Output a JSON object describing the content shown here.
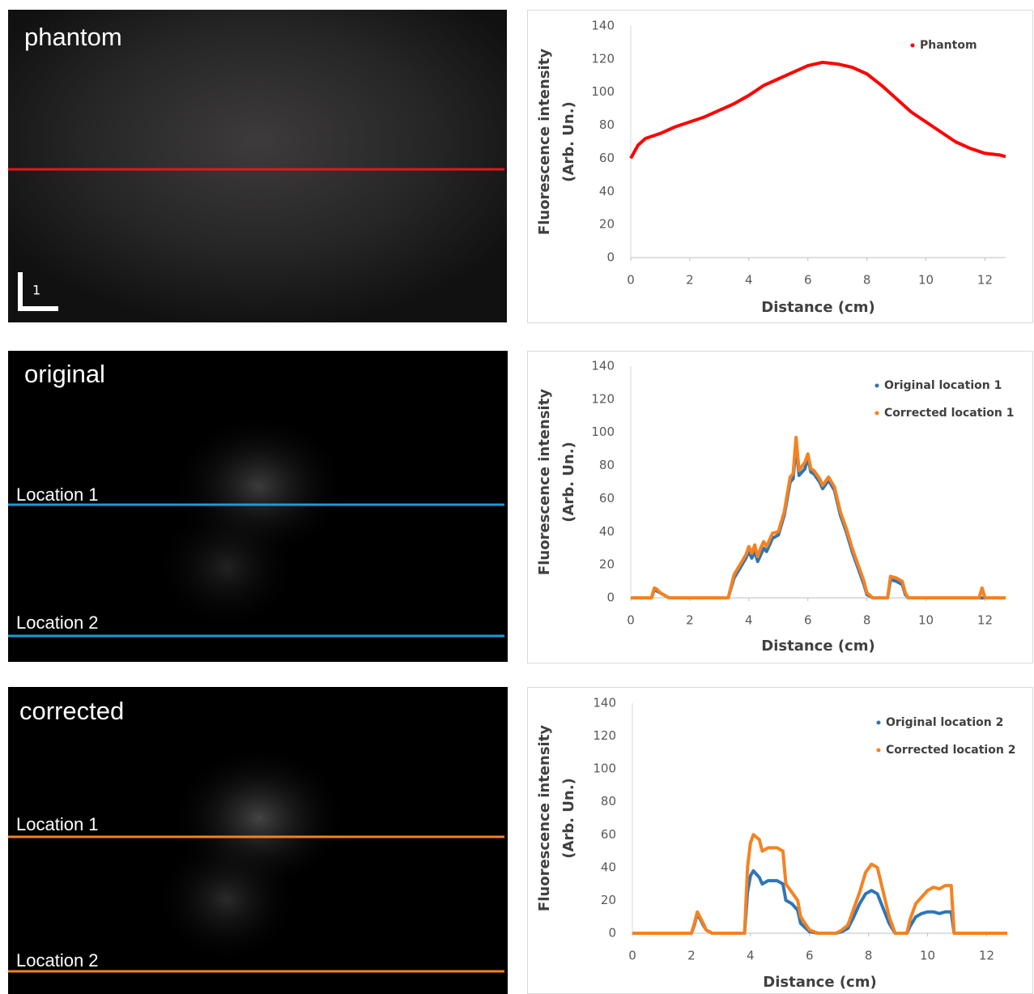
{
  "images": [
    {
      "title": "phantom",
      "scale_label": "1"
    },
    {
      "title": "original",
      "lines": [
        "Location 1",
        "Location 2"
      ]
    },
    {
      "title": "corrected",
      "lines": [
        "Location 1",
        "Location 2"
      ]
    }
  ],
  "chart_data": [
    {
      "type": "scatter",
      "xlabel": "Distance (cm)",
      "ylabel": [
        "Fluorescence intensity",
        "(Arb. Un.)"
      ],
      "xlim": [
        0,
        12.7
      ],
      "ylim": [
        0,
        140
      ],
      "xticks": [
        0,
        2,
        4,
        6,
        8,
        10,
        12
      ],
      "yticks": [
        0,
        20,
        40,
        60,
        80,
        100,
        120,
        140
      ],
      "legend": "upper right",
      "x": [
        0,
        0.25,
        0.5,
        1,
        1.5,
        2,
        2.5,
        3,
        3.5,
        4,
        4.5,
        5,
        5.5,
        6,
        6.5,
        7,
        7.5,
        8,
        8.5,
        9,
        9.5,
        10,
        10.5,
        11,
        11.5,
        12,
        12.5,
        12.7
      ],
      "series": [
        {
          "name": "Phantom",
          "color": "#ff0000",
          "values": [
            60,
            68,
            72,
            75,
            79,
            82,
            85,
            89,
            93,
            98,
            104,
            108,
            112,
            116,
            118,
            117,
            115,
            111,
            104,
            96,
            88,
            82,
            76,
            70,
            66,
            63,
            62,
            61
          ]
        }
      ]
    },
    {
      "type": "scatter",
      "xlabel": "Distance (cm)",
      "ylabel": [
        "Fluorescence intensity",
        "(Arb. Un.)"
      ],
      "xlim": [
        0,
        12.7
      ],
      "ylim": [
        0,
        140
      ],
      "xticks": [
        0,
        2,
        4,
        6,
        8,
        10,
        12
      ],
      "yticks": [
        0,
        20,
        40,
        60,
        80,
        100,
        120,
        140
      ],
      "legend": "upper right",
      "x": [
        0,
        0.7,
        0.8,
        0.9,
        1,
        1.2,
        1.3,
        3.3,
        3.5,
        3.7,
        3.9,
        4,
        4.1,
        4.2,
        4.3,
        4.4,
        4.5,
        4.6,
        4.8,
        5,
        5.2,
        5.4,
        5.5,
        5.6,
        5.7,
        5.9,
        6,
        6.1,
        6.2,
        6.4,
        6.5,
        6.7,
        6.9,
        7.1,
        7.3,
        7.5,
        7.7,
        7.9,
        8,
        8.2,
        8.7,
        8.8,
        9,
        9.2,
        9.3,
        9.4,
        11.8,
        11.9,
        12,
        12.7
      ],
      "series": [
        {
          "name": "Original location 1",
          "color": "#2e75b6",
          "values": [
            0,
            0,
            5,
            4,
            3,
            1,
            0,
            0,
            12,
            18,
            24,
            28,
            24,
            28,
            22,
            26,
            30,
            28,
            36,
            38,
            50,
            70,
            72,
            92,
            74,
            78,
            85,
            76,
            75,
            70,
            66,
            71,
            65,
            50,
            40,
            28,
            18,
            8,
            2,
            0,
            0,
            11,
            10,
            8,
            2,
            0,
            0,
            0,
            0,
            0
          ]
        },
        {
          "name": "Corrected location 1",
          "color": "#f58220",
          "values": [
            0,
            0,
            6,
            5,
            3,
            1,
            0,
            0,
            14,
            20,
            26,
            31,
            27,
            32,
            25,
            30,
            34,
            31,
            39,
            40,
            52,
            73,
            75,
            97,
            77,
            82,
            87,
            78,
            77,
            72,
            68,
            73,
            67,
            52,
            42,
            30,
            20,
            10,
            3,
            0,
            0,
            13,
            12,
            10,
            3,
            0,
            0,
            6,
            0,
            0
          ]
        }
      ]
    },
    {
      "type": "scatter",
      "xlabel": "Distance (cm)",
      "ylabel": [
        "Fluorescence intensity",
        "(Arb. Un.)"
      ],
      "xlim": [
        0,
        12.7
      ],
      "ylim": [
        0,
        140
      ],
      "xticks": [
        0,
        2,
        4,
        6,
        8,
        10,
        12
      ],
      "yticks": [
        0,
        20,
        40,
        60,
        80,
        100,
        120,
        140
      ],
      "legend": "upper right",
      "x": [
        0,
        2,
        2.1,
        2.2,
        2.4,
        2.5,
        2.7,
        3.7,
        3.8,
        3.9,
        4,
        4.1,
        4.3,
        4.4,
        4.6,
        4.9,
        5.1,
        5.2,
        5.4,
        5.6,
        5.7,
        6,
        6.3,
        6.9,
        7.1,
        7.3,
        7.5,
        7.7,
        7.9,
        8.1,
        8.3,
        8.5,
        8.7,
        8.9,
        9.3,
        9.4,
        9.6,
        9.8,
        10,
        10.2,
        10.4,
        10.6,
        10.8,
        10.9,
        12.7
      ],
      "series": [
        {
          "name": "Original location 2",
          "color": "#2e75b6",
          "values": [
            0,
            0,
            5,
            12,
            5,
            2,
            0,
            0,
            0,
            25,
            35,
            38,
            34,
            30,
            32,
            32,
            30,
            20,
            18,
            14,
            6,
            1,
            0,
            0,
            1,
            3,
            10,
            18,
            24,
            26,
            24,
            15,
            6,
            0,
            0,
            4,
            10,
            12,
            13,
            13,
            12,
            13,
            13,
            0,
            0
          ]
        },
        {
          "name": "Corrected location 2",
          "color": "#f58220",
          "values": [
            0,
            0,
            6,
            13,
            6,
            2,
            0,
            0,
            0,
            40,
            55,
            60,
            57,
            50,
            52,
            52,
            50,
            30,
            25,
            20,
            10,
            2,
            0,
            0,
            2,
            5,
            15,
            25,
            37,
            42,
            40,
            25,
            10,
            0,
            0,
            8,
            18,
            22,
            26,
            28,
            27,
            29,
            29,
            0,
            0
          ]
        }
      ]
    }
  ]
}
